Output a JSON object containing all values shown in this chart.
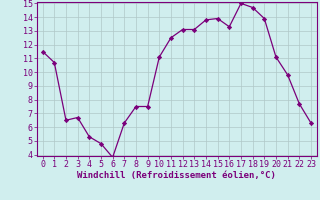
{
  "x": [
    0,
    1,
    2,
    3,
    4,
    5,
    6,
    7,
    8,
    9,
    10,
    11,
    12,
    13,
    14,
    15,
    16,
    17,
    18,
    19,
    20,
    21,
    22,
    23
  ],
  "y": [
    11.5,
    10.7,
    6.5,
    6.7,
    5.3,
    4.8,
    3.8,
    6.3,
    7.5,
    7.5,
    11.1,
    12.5,
    13.1,
    13.1,
    13.8,
    13.9,
    13.3,
    15.0,
    14.7,
    13.9,
    11.1,
    9.8,
    7.7,
    6.3
  ],
  "line_color": "#7B007B",
  "marker": "D",
  "marker_size": 2.2,
  "bg_color": "#d0eeee",
  "grid_color": "#b0c8c8",
  "xlabel": "Windchill (Refroidissement éolien,°C)",
  "ylim": [
    4,
    15
  ],
  "xlim": [
    -0.5,
    23.5
  ],
  "yticks": [
    4,
    5,
    6,
    7,
    8,
    9,
    10,
    11,
    12,
    13,
    14,
    15
  ],
  "xticks": [
    0,
    1,
    2,
    3,
    4,
    5,
    6,
    7,
    8,
    9,
    10,
    11,
    12,
    13,
    14,
    15,
    16,
    17,
    18,
    19,
    20,
    21,
    22,
    23
  ],
  "xlabel_fontsize": 6.5,
  "tick_fontsize": 6.0,
  "axis_label_color": "#7B007B",
  "tick_color": "#7B007B",
  "spine_color": "#7B007B",
  "linewidth": 0.9
}
